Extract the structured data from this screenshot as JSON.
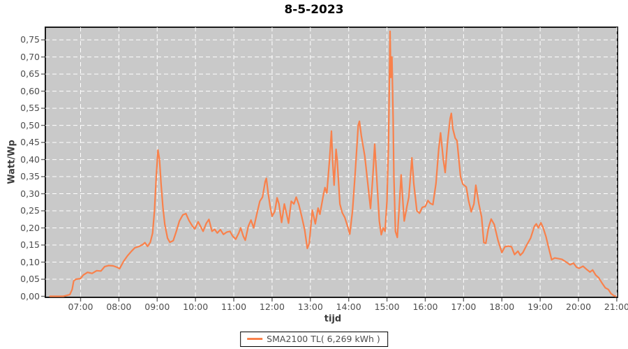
{
  "title": "8-5-2023",
  "colors": {
    "line": "#f9814b",
    "plot_background": "#c9c9c9",
    "grid": "#ffffff",
    "plot_border": "#1a1a1a",
    "tick_mark": "#666666",
    "tick_text": "#4d4d4d",
    "title_text": "#000000"
  },
  "legend": {
    "label": "SMA2100 TL( 6,269 kWh )",
    "position": "bottom"
  },
  "chart_data": {
    "type": "line",
    "title": "8-5-2023",
    "xlabel": "tijd",
    "ylabel": "Watt/Wp",
    "xlim": [
      6.08,
      21.02
    ],
    "ylim": [
      0,
      0.787
    ],
    "grid": "on-white-dashed",
    "legend_position": "bottom",
    "x_ticks": [
      {
        "v": 7,
        "label": "07:00"
      },
      {
        "v": 8,
        "label": "08:00"
      },
      {
        "v": 9,
        "label": "09:00"
      },
      {
        "v": 10,
        "label": "10:00"
      },
      {
        "v": 11,
        "label": "11:00"
      },
      {
        "v": 12,
        "label": "12:00"
      },
      {
        "v": 13,
        "label": "13:00"
      },
      {
        "v": 14,
        "label": "14:00"
      },
      {
        "v": 15,
        "label": "15:00"
      },
      {
        "v": 16,
        "label": "16:00"
      },
      {
        "v": 17,
        "label": "17:00"
      },
      {
        "v": 18,
        "label": "18:00"
      },
      {
        "v": 19,
        "label": "19:00"
      },
      {
        "v": 20,
        "label": "20:00"
      },
      {
        "v": 21,
        "label": "21:00"
      }
    ],
    "y_ticks": [
      {
        "v": 0.0,
        "label": "0,00"
      },
      {
        "v": 0.05,
        "label": "0,05"
      },
      {
        "v": 0.1,
        "label": "0,10"
      },
      {
        "v": 0.15,
        "label": "0,15"
      },
      {
        "v": 0.2,
        "label": "0,20"
      },
      {
        "v": 0.25,
        "label": "0,25"
      },
      {
        "v": 0.3,
        "label": "0,30"
      },
      {
        "v": 0.35,
        "label": "0,35"
      },
      {
        "v": 0.4,
        "label": "0,40"
      },
      {
        "v": 0.45,
        "label": "0,45"
      },
      {
        "v": 0.5,
        "label": "0,50"
      },
      {
        "v": 0.55,
        "label": "0,55"
      },
      {
        "v": 0.6,
        "label": "0,60"
      },
      {
        "v": 0.65,
        "label": "0,65"
      },
      {
        "v": 0.7,
        "label": "0,70"
      },
      {
        "v": 0.75,
        "label": "0,75"
      }
    ],
    "series": [
      {
        "name": "SMA2100 TL( 6,269 kWh )",
        "color": "#f9814b",
        "points": [
          [
            6.2,
            0.0
          ],
          [
            6.55,
            0.0
          ],
          [
            6.72,
            0.005
          ],
          [
            6.78,
            0.02
          ],
          [
            6.82,
            0.045
          ],
          [
            6.88,
            0.05
          ],
          [
            7.0,
            0.052
          ],
          [
            7.07,
            0.062
          ],
          [
            7.18,
            0.07
          ],
          [
            7.3,
            0.067
          ],
          [
            7.42,
            0.075
          ],
          [
            7.53,
            0.074
          ],
          [
            7.63,
            0.087
          ],
          [
            7.73,
            0.09
          ],
          [
            7.85,
            0.089
          ],
          [
            7.95,
            0.085
          ],
          [
            8.02,
            0.081
          ],
          [
            8.12,
            0.102
          ],
          [
            8.22,
            0.118
          ],
          [
            8.33,
            0.132
          ],
          [
            8.42,
            0.142
          ],
          [
            8.53,
            0.146
          ],
          [
            8.63,
            0.152
          ],
          [
            8.68,
            0.157
          ],
          [
            8.75,
            0.146
          ],
          [
            8.82,
            0.158
          ],
          [
            8.88,
            0.185
          ],
          [
            8.93,
            0.25
          ],
          [
            8.98,
            0.36
          ],
          [
            9.02,
            0.428
          ],
          [
            9.06,
            0.4
          ],
          [
            9.1,
            0.33
          ],
          [
            9.15,
            0.26
          ],
          [
            9.2,
            0.21
          ],
          [
            9.27,
            0.17
          ],
          [
            9.33,
            0.158
          ],
          [
            9.42,
            0.163
          ],
          [
            9.5,
            0.19
          ],
          [
            9.58,
            0.22
          ],
          [
            9.67,
            0.238
          ],
          [
            9.75,
            0.242
          ],
          [
            9.83,
            0.222
          ],
          [
            9.92,
            0.205
          ],
          [
            9.98,
            0.197
          ],
          [
            10.07,
            0.218
          ],
          [
            10.13,
            0.205
          ],
          [
            10.2,
            0.19
          ],
          [
            10.28,
            0.213
          ],
          [
            10.35,
            0.225
          ],
          [
            10.43,
            0.19
          ],
          [
            10.5,
            0.196
          ],
          [
            10.57,
            0.185
          ],
          [
            10.65,
            0.195
          ],
          [
            10.73,
            0.181
          ],
          [
            10.82,
            0.188
          ],
          [
            10.9,
            0.19
          ],
          [
            10.97,
            0.176
          ],
          [
            11.05,
            0.167
          ],
          [
            11.13,
            0.185
          ],
          [
            11.18,
            0.2
          ],
          [
            11.25,
            0.175
          ],
          [
            11.3,
            0.164
          ],
          [
            11.38,
            0.205
          ],
          [
            11.45,
            0.223
          ],
          [
            11.52,
            0.2
          ],
          [
            11.6,
            0.24
          ],
          [
            11.68,
            0.278
          ],
          [
            11.75,
            0.29
          ],
          [
            11.82,
            0.335
          ],
          [
            11.85,
            0.345
          ],
          [
            11.9,
            0.3
          ],
          [
            11.95,
            0.262
          ],
          [
            12.0,
            0.234
          ],
          [
            12.07,
            0.248
          ],
          [
            12.13,
            0.288
          ],
          [
            12.18,
            0.27
          ],
          [
            12.25,
            0.216
          ],
          [
            12.32,
            0.27
          ],
          [
            12.38,
            0.24
          ],
          [
            12.43,
            0.214
          ],
          [
            12.5,
            0.278
          ],
          [
            12.57,
            0.27
          ],
          [
            12.63,
            0.29
          ],
          [
            12.7,
            0.268
          ],
          [
            12.77,
            0.235
          ],
          [
            12.85,
            0.195
          ],
          [
            12.92,
            0.14
          ],
          [
            12.97,
            0.155
          ],
          [
            13.05,
            0.252
          ],
          [
            13.13,
            0.212
          ],
          [
            13.2,
            0.258
          ],
          [
            13.25,
            0.24
          ],
          [
            13.33,
            0.29
          ],
          [
            13.38,
            0.318
          ],
          [
            13.43,
            0.302
          ],
          [
            13.5,
            0.4
          ],
          [
            13.55,
            0.483
          ],
          [
            13.58,
            0.4
          ],
          [
            13.62,
            0.325
          ],
          [
            13.67,
            0.43
          ],
          [
            13.7,
            0.4
          ],
          [
            13.77,
            0.27
          ],
          [
            13.83,
            0.245
          ],
          [
            13.9,
            0.23
          ],
          [
            13.97,
            0.205
          ],
          [
            14.03,
            0.182
          ],
          [
            14.1,
            0.25
          ],
          [
            14.17,
            0.36
          ],
          [
            14.25,
            0.5
          ],
          [
            14.28,
            0.512
          ],
          [
            14.33,
            0.47
          ],
          [
            14.42,
            0.41
          ],
          [
            14.5,
            0.33
          ],
          [
            14.57,
            0.257
          ],
          [
            14.63,
            0.35
          ],
          [
            14.68,
            0.445
          ],
          [
            14.73,
            0.35
          ],
          [
            14.8,
            0.22
          ],
          [
            14.85,
            0.18
          ],
          [
            14.9,
            0.2
          ],
          [
            14.95,
            0.19
          ],
          [
            15.0,
            0.28
          ],
          [
            15.04,
            0.45
          ],
          [
            15.08,
            0.775
          ],
          [
            15.1,
            0.64
          ],
          [
            15.13,
            0.7
          ],
          [
            15.16,
            0.52
          ],
          [
            15.18,
            0.35
          ],
          [
            15.22,
            0.19
          ],
          [
            15.27,
            0.172
          ],
          [
            15.32,
            0.26
          ],
          [
            15.37,
            0.355
          ],
          [
            15.42,
            0.27
          ],
          [
            15.45,
            0.22
          ],
          [
            15.52,
            0.262
          ],
          [
            15.57,
            0.29
          ],
          [
            15.65,
            0.405
          ],
          [
            15.7,
            0.33
          ],
          [
            15.78,
            0.25
          ],
          [
            15.85,
            0.243
          ],
          [
            15.92,
            0.26
          ],
          [
            16.0,
            0.263
          ],
          [
            16.07,
            0.28
          ],
          [
            16.13,
            0.272
          ],
          [
            16.2,
            0.268
          ],
          [
            16.28,
            0.33
          ],
          [
            16.35,
            0.43
          ],
          [
            16.4,
            0.478
          ],
          [
            16.47,
            0.4
          ],
          [
            16.52,
            0.362
          ],
          [
            16.58,
            0.45
          ],
          [
            16.65,
            0.52
          ],
          [
            16.68,
            0.535
          ],
          [
            16.72,
            0.49
          ],
          [
            16.78,
            0.463
          ],
          [
            16.83,
            0.455
          ],
          [
            16.92,
            0.35
          ],
          [
            16.98,
            0.328
          ],
          [
            17.07,
            0.32
          ],
          [
            17.13,
            0.28
          ],
          [
            17.2,
            0.247
          ],
          [
            17.27,
            0.27
          ],
          [
            17.32,
            0.325
          ],
          [
            17.4,
            0.27
          ],
          [
            17.47,
            0.232
          ],
          [
            17.53,
            0.157
          ],
          [
            17.58,
            0.155
          ],
          [
            17.65,
            0.2
          ],
          [
            17.72,
            0.226
          ],
          [
            17.8,
            0.21
          ],
          [
            17.9,
            0.163
          ],
          [
            18.0,
            0.128
          ],
          [
            18.08,
            0.145
          ],
          [
            18.17,
            0.147
          ],
          [
            18.25,
            0.145
          ],
          [
            18.33,
            0.122
          ],
          [
            18.42,
            0.132
          ],
          [
            18.48,
            0.12
          ],
          [
            18.55,
            0.128
          ],
          [
            18.65,
            0.15
          ],
          [
            18.75,
            0.17
          ],
          [
            18.85,
            0.205
          ],
          [
            18.9,
            0.212
          ],
          [
            18.95,
            0.2
          ],
          [
            19.02,
            0.215
          ],
          [
            19.08,
            0.2
          ],
          [
            19.15,
            0.175
          ],
          [
            19.22,
            0.143
          ],
          [
            19.3,
            0.107
          ],
          [
            19.38,
            0.112
          ],
          [
            19.48,
            0.11
          ],
          [
            19.57,
            0.108
          ],
          [
            19.68,
            0.1
          ],
          [
            19.78,
            0.092
          ],
          [
            19.87,
            0.097
          ],
          [
            19.95,
            0.085
          ],
          [
            20.02,
            0.082
          ],
          [
            20.12,
            0.088
          ],
          [
            20.22,
            0.078
          ],
          [
            20.3,
            0.071
          ],
          [
            20.37,
            0.077
          ],
          [
            20.45,
            0.062
          ],
          [
            20.53,
            0.054
          ],
          [
            20.62,
            0.038
          ],
          [
            20.7,
            0.025
          ],
          [
            20.78,
            0.02
          ],
          [
            20.85,
            0.008
          ],
          [
            20.92,
            0.002
          ],
          [
            20.97,
            0.0
          ]
        ]
      }
    ]
  }
}
